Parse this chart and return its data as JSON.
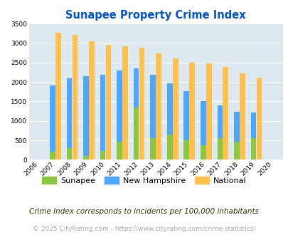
{
  "title": "Sunapee Property Crime Index",
  "years": [
    2006,
    2007,
    2008,
    2009,
    2010,
    2011,
    2012,
    2013,
    2014,
    2015,
    2016,
    2017,
    2018,
    2019,
    2020
  ],
  "sunapee": [
    0,
    200,
    300,
    100,
    230,
    470,
    1350,
    560,
    650,
    510,
    380,
    560,
    470,
    560,
    0
  ],
  "new_hampshire": [
    0,
    1900,
    2090,
    2150,
    2180,
    2290,
    2350,
    2190,
    1970,
    1760,
    1510,
    1390,
    1240,
    1220,
    0
  ],
  "national": [
    0,
    3260,
    3200,
    3040,
    2960,
    2920,
    2870,
    2730,
    2610,
    2500,
    2480,
    2390,
    2220,
    2110,
    0
  ],
  "sunapee_color": "#8dc63f",
  "nh_color": "#4da6ff",
  "national_color": "#ffc04d",
  "bg_color": "#dce9f0",
  "title_color": "#0055cc",
  "ylim": [
    0,
    3500
  ],
  "yticks": [
    0,
    500,
    1000,
    1500,
    2000,
    2500,
    3000,
    3500
  ],
  "footnote1": "Crime Index corresponds to incidents per 100,000 inhabitants",
  "footnote2": "© 2025 CityRating.com - https://www.cityrating.com/crime-statistics/",
  "footnote1_color": "#333300",
  "footnote2_color": "#aaaaaa"
}
